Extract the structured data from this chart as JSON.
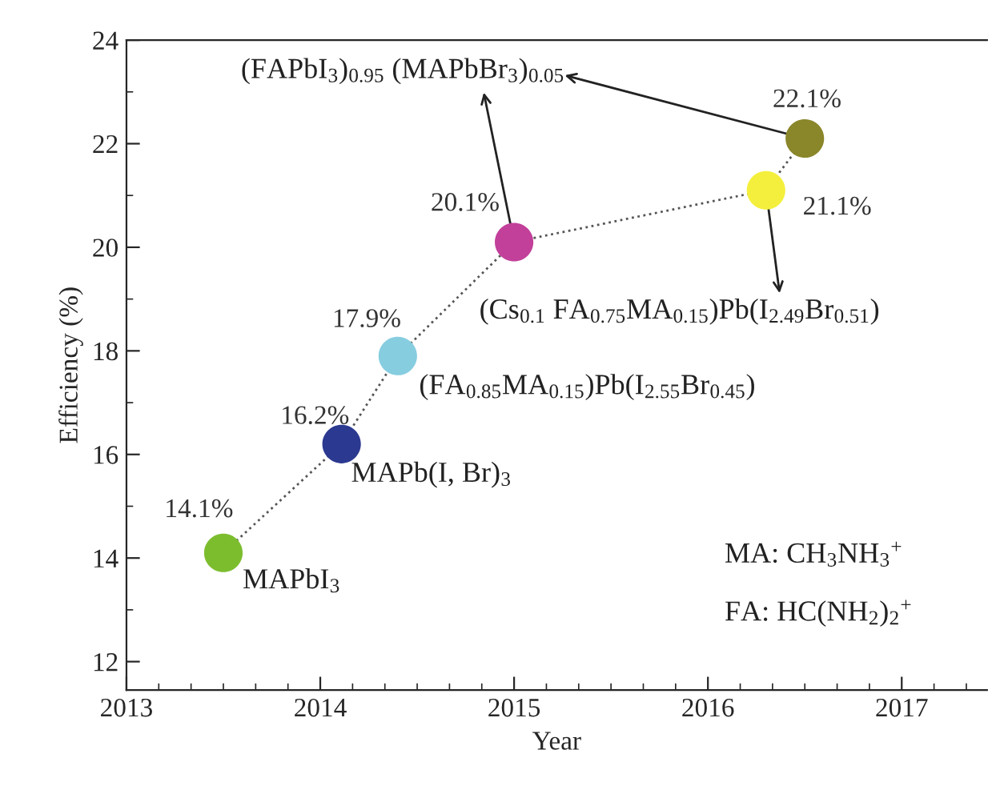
{
  "chart_data": {
    "type": "line",
    "xlabel": "Year",
    "ylabel": "Efficiency (%)",
    "x": [
      2013.5,
      2014.11,
      2014.4,
      2015.0,
      2016.3,
      2016.5
    ],
    "series": [
      {
        "color": "#555555",
        "colors": [
          "#7cbd2e",
          "#2b3990",
          "#87cde0",
          "#c2409a",
          "#f4ef3c",
          "#8a862a"
        ],
        "values": [
          14.1,
          16.2,
          17.9,
          20.1,
          21.1,
          22.1
        ],
        "value_labels": [
          "14.1%",
          "16.2%",
          "17.9%",
          "20.1%",
          "21.1%",
          "22.1%"
        ]
      }
    ],
    "marker": "circle",
    "line_style": "dotted",
    "xlim": [
      2013,
      2017.44
    ],
    "xticks": [
      2013,
      2014,
      2015,
      2016,
      2017
    ],
    "ylim": [
      11.45,
      24
    ],
    "yticks": [
      12,
      14,
      16,
      18,
      20,
      22,
      24
    ],
    "grid": false,
    "legend": false,
    "annotations": [
      "MAPbI$_{3}$",
      "MAPb(I, Br)$_{3}$",
      "(FA$_{0.85}$MA$_{0.15}$)Pb(I$_{2.55}$Br$_{0.45}$)",
      {
        "text": "(FAPbI$_{3}$)$_{0.95}$ (MAPbBr$_{3}$)$_{0.05}$",
        "x": 2015.0,
        "y": 20.1
      },
      "(Cs$_{0.1}$ FA$_{0.75}$MA$_{0.15}$)Pb(I$_{2.49}$Br$_{0.51}$)",
      "MA: CH$_{3}$NH$_{3}$$^{+}$",
      "FA: HC(NH$_{2}$)$_{2}$$^{+}$"
    ]
  }
}
